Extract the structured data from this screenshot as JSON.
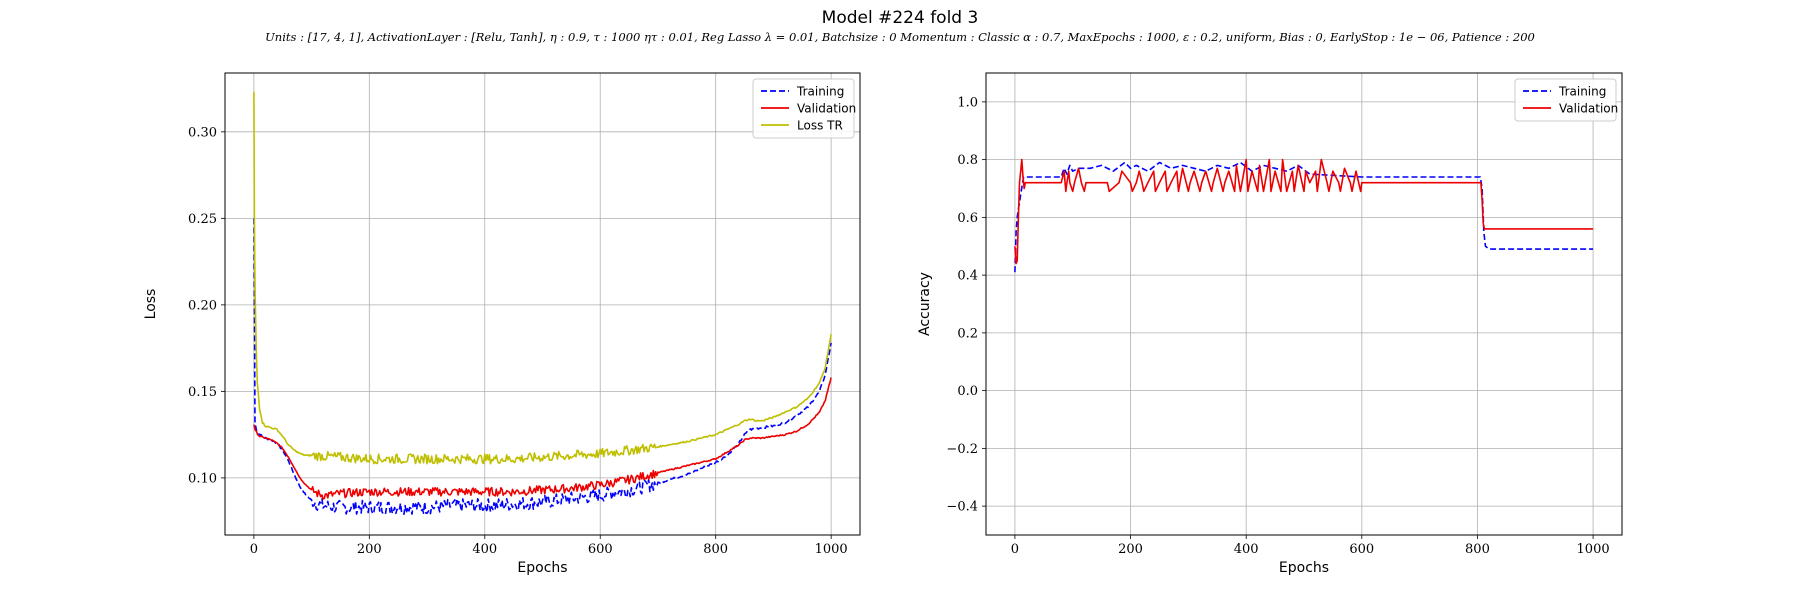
{
  "title": "Model #224 fold 3",
  "subtitle": "Units : [17, 4, 1], ActivationLayer : [Relu, Tanh], η : 0.9, τ : 1000 ητ : 0.01, Reg Lasso λ = 0.01, Batchsize : 0 Momentum : Classic α : 0.7, MaxEpochs : 1000, ε : 0.2, uniform, Bias : 0, EarlyStop : 1e − 06, Patience : 200",
  "chart_data": [
    {
      "type": "line",
      "xlabel": "Epochs",
      "ylabel": "Loss",
      "xlim": [
        -50,
        1050
      ],
      "ylim": [
        0.067,
        0.334
      ],
      "xticks": [
        0,
        200,
        400,
        600,
        800,
        1000
      ],
      "yticks": [
        0.1,
        0.15,
        0.2,
        0.25,
        0.3
      ],
      "ytick_labels": [
        "0.10",
        "0.15",
        "0.20",
        "0.25",
        "0.30"
      ],
      "grid": true,
      "legend_position": "top-right",
      "series": [
        {
          "name": "Training",
          "color": "#0000ff",
          "dash": "dashed",
          "noise": 0.004,
          "x": [
            0,
            2,
            5,
            10,
            20,
            30,
            40,
            50,
            60,
            70,
            80,
            90,
            100,
            110,
            120,
            150,
            200,
            250,
            300,
            350,
            400,
            450,
            500,
            550,
            600,
            650,
            700,
            750,
            800,
            820,
            840,
            850,
            860,
            880,
            900,
            920,
            940,
            960,
            980,
            990,
            1000
          ],
          "y": [
            0.25,
            0.132,
            0.127,
            0.125,
            0.123,
            0.122,
            0.12,
            0.116,
            0.11,
            0.102,
            0.095,
            0.09,
            0.087,
            0.085,
            0.084,
            0.083,
            0.083,
            0.083,
            0.083,
            0.084,
            0.084,
            0.085,
            0.086,
            0.088,
            0.09,
            0.093,
            0.097,
            0.102,
            0.109,
            0.113,
            0.12,
            0.125,
            0.128,
            0.129,
            0.13,
            0.132,
            0.136,
            0.141,
            0.15,
            0.16,
            0.178
          ]
        },
        {
          "name": "Validation",
          "color": "#ee0000",
          "dash": "solid",
          "noise": 0.0025,
          "x": [
            0,
            2,
            5,
            10,
            20,
            30,
            40,
            50,
            60,
            70,
            80,
            90,
            100,
            110,
            120,
            130,
            150,
            200,
            250,
            300,
            350,
            400,
            450,
            500,
            550,
            600,
            650,
            700,
            750,
            800,
            820,
            840,
            850,
            860,
            880,
            900,
            920,
            940,
            960,
            980,
            990,
            1000
          ],
          "y": [
            0.131,
            0.128,
            0.126,
            0.124,
            0.123,
            0.122,
            0.12,
            0.117,
            0.112,
            0.106,
            0.1,
            0.096,
            0.093,
            0.091,
            0.09,
            0.09,
            0.091,
            0.092,
            0.092,
            0.092,
            0.092,
            0.092,
            0.092,
            0.093,
            0.094,
            0.096,
            0.099,
            0.103,
            0.107,
            0.111,
            0.115,
            0.119,
            0.122,
            0.123,
            0.123,
            0.124,
            0.125,
            0.127,
            0.131,
            0.138,
            0.145,
            0.158
          ]
        },
        {
          "name": "Loss TR",
          "color": "#bfbf00",
          "dash": "solid",
          "noise": 0.0028,
          "x": [
            0,
            1,
            2,
            4,
            6,
            10,
            15,
            20,
            30,
            40,
            50,
            60,
            70,
            80,
            90,
            100,
            150,
            200,
            250,
            300,
            350,
            400,
            450,
            500,
            550,
            600,
            650,
            700,
            750,
            800,
            820,
            840,
            850,
            860,
            870,
            880,
            900,
            920,
            940,
            960,
            980,
            990,
            1000
          ],
          "y": [
            0.323,
            0.25,
            0.21,
            0.175,
            0.155,
            0.14,
            0.132,
            0.13,
            0.129,
            0.128,
            0.124,
            0.119,
            0.116,
            0.114,
            0.113,
            0.113,
            0.112,
            0.111,
            0.111,
            0.111,
            0.111,
            0.111,
            0.111,
            0.112,
            0.113,
            0.114,
            0.116,
            0.118,
            0.121,
            0.125,
            0.128,
            0.131,
            0.133,
            0.134,
            0.133,
            0.133,
            0.135,
            0.138,
            0.141,
            0.146,
            0.155,
            0.164,
            0.183
          ]
        }
      ]
    },
    {
      "type": "line",
      "xlabel": "Epochs",
      "ylabel": "Accuracy",
      "xlim": [
        -50,
        1050
      ],
      "ylim": [
        -0.5,
        1.1
      ],
      "xticks": [
        0,
        200,
        400,
        600,
        800,
        1000
      ],
      "yticks": [
        -0.4,
        -0.2,
        0.0,
        0.2,
        0.4,
        0.6,
        0.8,
        1.0
      ],
      "ytick_labels": [
        "−0.4",
        "−0.2",
        "0.0",
        "0.2",
        "0.4",
        "0.6",
        "0.8",
        "1.0"
      ],
      "grid": true,
      "legend_position": "top-right",
      "series": [
        {
          "name": "Training",
          "color": "#0000ff",
          "dash": "dashed",
          "noise": 0,
          "x": [
            0,
            2,
            4,
            6,
            8,
            10,
            15,
            20,
            80,
            85,
            90,
            95,
            100,
            110,
            130,
            150,
            170,
            190,
            200,
            210,
            230,
            250,
            270,
            290,
            310,
            330,
            350,
            370,
            390,
            410,
            430,
            450,
            470,
            490,
            510,
            600,
            805,
            808,
            811,
            814,
            820,
            1000
          ],
          "y": [
            0.41,
            0.55,
            0.6,
            0.63,
            0.65,
            0.68,
            0.74,
            0.74,
            0.74,
            0.77,
            0.75,
            0.78,
            0.76,
            0.77,
            0.77,
            0.78,
            0.76,
            0.79,
            0.77,
            0.78,
            0.76,
            0.79,
            0.77,
            0.78,
            0.77,
            0.76,
            0.78,
            0.77,
            0.79,
            0.76,
            0.78,
            0.77,
            0.76,
            0.78,
            0.75,
            0.74,
            0.74,
            0.7,
            0.55,
            0.5,
            0.49,
            0.49
          ]
        },
        {
          "name": "Validation",
          "color": "#ee0000",
          "dash": "solid",
          "noise": 0,
          "x": [
            0,
            2,
            4,
            6,
            8,
            10,
            12,
            14,
            16,
            18,
            20,
            80,
            85,
            88,
            90,
            93,
            95,
            100,
            103,
            110,
            115,
            120,
            123,
            160,
            163,
            180,
            185,
            200,
            203,
            210,
            215,
            220,
            223,
            230,
            240,
            243,
            250,
            260,
            263,
            270,
            280,
            283,
            290,
            300,
            303,
            310,
            320,
            323,
            330,
            340,
            343,
            350,
            360,
            363,
            370,
            380,
            383,
            390,
            400,
            403,
            410,
            420,
            423,
            430,
            440,
            443,
            450,
            460,
            463,
            470,
            480,
            483,
            490,
            500,
            503,
            510,
            520,
            523,
            530,
            540,
            543,
            550,
            560,
            563,
            570,
            580,
            583,
            590,
            598,
            600,
            806,
            808,
            810,
            812,
            1000
          ],
          "y": [
            0.5,
            0.44,
            0.45,
            0.6,
            0.72,
            0.76,
            0.8,
            0.74,
            0.7,
            0.72,
            0.72,
            0.72,
            0.76,
            0.69,
            0.72,
            0.76,
            0.72,
            0.69,
            0.72,
            0.77,
            0.72,
            0.69,
            0.72,
            0.72,
            0.69,
            0.72,
            0.76,
            0.72,
            0.69,
            0.72,
            0.76,
            0.72,
            0.69,
            0.72,
            0.76,
            0.69,
            0.72,
            0.76,
            0.69,
            0.72,
            0.76,
            0.69,
            0.77,
            0.69,
            0.72,
            0.76,
            0.69,
            0.72,
            0.76,
            0.69,
            0.72,
            0.77,
            0.69,
            0.72,
            0.76,
            0.69,
            0.78,
            0.69,
            0.8,
            0.69,
            0.76,
            0.69,
            0.78,
            0.69,
            0.8,
            0.69,
            0.76,
            0.69,
            0.8,
            0.69,
            0.76,
            0.69,
            0.78,
            0.69,
            0.76,
            0.72,
            0.76,
            0.69,
            0.8,
            0.72,
            0.69,
            0.76,
            0.72,
            0.69,
            0.77,
            0.72,
            0.69,
            0.76,
            0.69,
            0.72,
            0.72,
            0.66,
            0.58,
            0.56,
            0.56
          ]
        }
      ]
    }
  ]
}
